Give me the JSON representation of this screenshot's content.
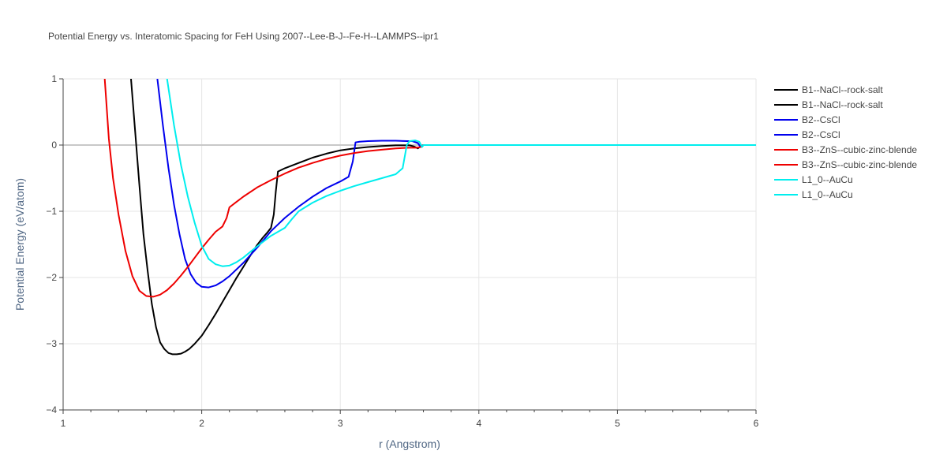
{
  "chart_data": {
    "type": "line",
    "title": "Potential Energy vs. Interatomic Spacing for FeH Using 2007--Lee-B-J--Fe-H--LAMMPS--ipr1",
    "xlabel": "r (Angstrom)",
    "ylabel": "Potential Energy (eV/atom)",
    "xlim": [
      1,
      6
    ],
    "ylim": [
      -4,
      1
    ],
    "xticks": [
      1,
      2,
      3,
      4,
      5,
      6
    ],
    "yticks": [
      {
        "v": 1,
        "label": "1"
      },
      {
        "v": 0,
        "label": "0"
      },
      {
        "v": -1,
        "label": "−1"
      },
      {
        "v": -2,
        "label": "−2"
      },
      {
        "v": -3,
        "label": "−3"
      },
      {
        "v": -4,
        "label": "−4"
      }
    ],
    "grid": true,
    "legend_position": "top-right",
    "series": [
      {
        "name": "B1--NaCl--rock-salt",
        "color": "#000000",
        "x": [
          1.49,
          1.52,
          1.55,
          1.58,
          1.61,
          1.64,
          1.67,
          1.7,
          1.73,
          1.76,
          1.79,
          1.82,
          1.85,
          1.88,
          1.91,
          1.95,
          2.0,
          2.05,
          2.1,
          2.15,
          2.2,
          2.25,
          2.3,
          2.35,
          2.4,
          2.44,
          2.47,
          2.5,
          2.52,
          2.535,
          2.55,
          2.6,
          2.7,
          2.8,
          2.9,
          3.0,
          3.1,
          3.2,
          3.3,
          3.4,
          3.5,
          3.53,
          3.56,
          3.58,
          3.6,
          6.0
        ],
        "y": [
          1.0,
          0.2,
          -0.6,
          -1.35,
          -1.9,
          -2.4,
          -2.75,
          -2.98,
          -3.08,
          -3.14,
          -3.16,
          -3.16,
          -3.15,
          -3.12,
          -3.08,
          -3.0,
          -2.88,
          -2.72,
          -2.55,
          -2.37,
          -2.19,
          -2.01,
          -1.84,
          -1.67,
          -1.51,
          -1.4,
          -1.33,
          -1.25,
          -1.05,
          -0.7,
          -0.4,
          -0.35,
          -0.27,
          -0.19,
          -0.13,
          -0.08,
          -0.05,
          -0.03,
          -0.015,
          -0.005,
          -0.005,
          -0.02,
          -0.05,
          -0.02,
          0.0,
          0.0
        ]
      },
      {
        "name": "B2--CsCl",
        "color": "#0000ee",
        "x": [
          1.68,
          1.72,
          1.76,
          1.8,
          1.84,
          1.88,
          1.92,
          1.96,
          2.0,
          2.05,
          2.1,
          2.15,
          2.2,
          2.3,
          2.4,
          2.5,
          2.6,
          2.7,
          2.8,
          2.9,
          3.0,
          3.06,
          3.09,
          3.11,
          3.14,
          3.2,
          3.3,
          3.4,
          3.48,
          3.52,
          3.56,
          3.58,
          3.6,
          6.0
        ],
        "y": [
          1.0,
          0.3,
          -0.35,
          -0.9,
          -1.35,
          -1.72,
          -1.95,
          -2.08,
          -2.14,
          -2.15,
          -2.12,
          -2.06,
          -1.98,
          -1.78,
          -1.55,
          -1.3,
          -1.1,
          -0.93,
          -0.78,
          -0.65,
          -0.55,
          -0.48,
          -0.25,
          0.04,
          0.05,
          0.06,
          0.065,
          0.065,
          0.06,
          0.06,
          0.03,
          -0.03,
          0.0,
          0.0
        ]
      },
      {
        "name": "B3--ZnS--cubic-zinc-blende",
        "color": "#ee0000",
        "x": [
          1.3,
          1.33,
          1.36,
          1.4,
          1.45,
          1.5,
          1.55,
          1.6,
          1.65,
          1.7,
          1.75,
          1.8,
          1.85,
          1.9,
          1.95,
          2.0,
          2.05,
          2.1,
          2.15,
          2.18,
          2.2,
          2.25,
          2.3,
          2.4,
          2.5,
          2.6,
          2.7,
          2.8,
          2.9,
          3.0,
          3.1,
          3.2,
          3.3,
          3.4,
          3.5,
          3.55,
          3.58,
          3.6,
          6.0
        ],
        "y": [
          1.0,
          0.1,
          -0.5,
          -1.05,
          -1.6,
          -1.98,
          -2.2,
          -2.28,
          -2.29,
          -2.26,
          -2.19,
          -2.09,
          -1.97,
          -1.84,
          -1.7,
          -1.56,
          -1.43,
          -1.31,
          -1.23,
          -1.1,
          -0.94,
          -0.86,
          -0.78,
          -0.64,
          -0.53,
          -0.43,
          -0.34,
          -0.27,
          -0.21,
          -0.16,
          -0.12,
          -0.09,
          -0.07,
          -0.05,
          -0.04,
          -0.04,
          -0.03,
          0.0,
          0.0
        ]
      },
      {
        "name": "L1_0--AuCu",
        "color": "#00eeee",
        "x": [
          1.75,
          1.8,
          1.85,
          1.9,
          1.95,
          2.0,
          2.05,
          2.1,
          2.15,
          2.2,
          2.25,
          2.3,
          2.4,
          2.5,
          2.6,
          2.65,
          2.7,
          2.8,
          2.9,
          3.0,
          3.1,
          3.2,
          3.3,
          3.4,
          3.45,
          3.48,
          3.5,
          3.54,
          3.57,
          3.59,
          3.6,
          6.0
        ],
        "y": [
          1.0,
          0.3,
          -0.3,
          -0.78,
          -1.18,
          -1.52,
          -1.72,
          -1.8,
          -1.83,
          -1.82,
          -1.77,
          -1.7,
          -1.53,
          -1.37,
          -1.25,
          -1.12,
          -1.0,
          -0.87,
          -0.77,
          -0.69,
          -0.62,
          -0.56,
          -0.5,
          -0.44,
          -0.35,
          0.0,
          0.06,
          0.07,
          0.05,
          -0.03,
          0.0,
          0.0
        ]
      }
    ],
    "legend": [
      {
        "label": "B1--NaCl--rock-salt",
        "color": "#000000"
      },
      {
        "label": "B1--NaCl--rock-salt",
        "color": "#000000"
      },
      {
        "label": "B2--CsCl",
        "color": "#0000ee"
      },
      {
        "label": "B2--CsCl",
        "color": "#0000ee"
      },
      {
        "label": "B3--ZnS--cubic-zinc-blende",
        "color": "#ee0000"
      },
      {
        "label": "B3--ZnS--cubic-zinc-blende",
        "color": "#ee0000"
      },
      {
        "label": "L1_0--AuCu",
        "color": "#00eeee"
      },
      {
        "label": "L1_0--AuCu",
        "color": "#00eeee"
      }
    ]
  }
}
